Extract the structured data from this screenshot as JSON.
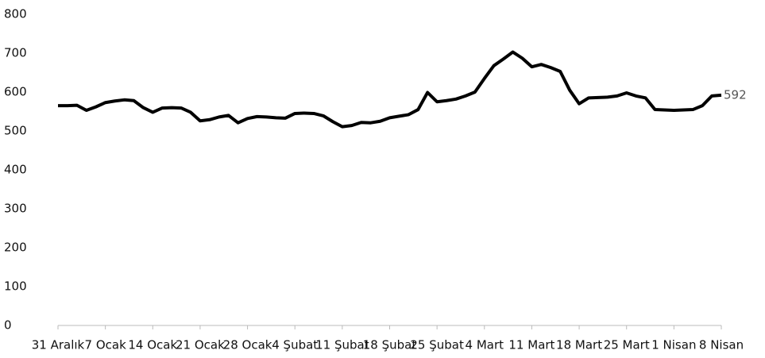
{
  "chart_data": {
    "type": "line",
    "categories": [
      "31 Aralık",
      null,
      null,
      null,
      null,
      "7 Ocak",
      null,
      null,
      null,
      null,
      "14 Ocak",
      null,
      null,
      null,
      null,
      "21 Ocak",
      null,
      null,
      null,
      null,
      "28 Ocak",
      null,
      null,
      null,
      null,
      "4 Şubat",
      null,
      null,
      null,
      null,
      "11 Şubat",
      null,
      null,
      null,
      null,
      "18 Şubat",
      null,
      null,
      null,
      null,
      "25 Şubat",
      null,
      null,
      null,
      null,
      "4 Mart",
      null,
      null,
      null,
      null,
      "11 Mart",
      null,
      null,
      null,
      null,
      "18 Mart",
      null,
      null,
      null,
      null,
      "25 Mart",
      null,
      null,
      null,
      null,
      "1 Nisan",
      null,
      null,
      null,
      null,
      "8 Nisan"
    ],
    "series": [
      {
        "color": "#000000",
        "values": [
          565,
          565,
          566,
          553,
          562,
          573,
          577,
          580,
          578,
          560,
          548,
          559,
          560,
          559,
          548,
          526,
          529,
          536,
          540,
          521,
          532,
          537,
          536,
          534,
          533,
          545,
          546,
          545,
          539,
          524,
          511,
          514,
          522,
          521,
          525,
          534,
          538,
          542,
          555,
          599,
          575,
          578,
          582,
          590,
          600,
          635,
          668,
          685,
          703,
          687,
          665,
          671,
          663,
          653,
          605,
          570,
          585,
          586,
          587,
          590,
          598,
          590,
          585,
          555,
          554,
          553,
          554,
          555,
          565,
          590,
          592
        ]
      }
    ],
    "ylim": [
      0,
      800
    ],
    "yticks": [
      0,
      100,
      200,
      300,
      400,
      500,
      600,
      700,
      800
    ],
    "grid": false
  }
}
